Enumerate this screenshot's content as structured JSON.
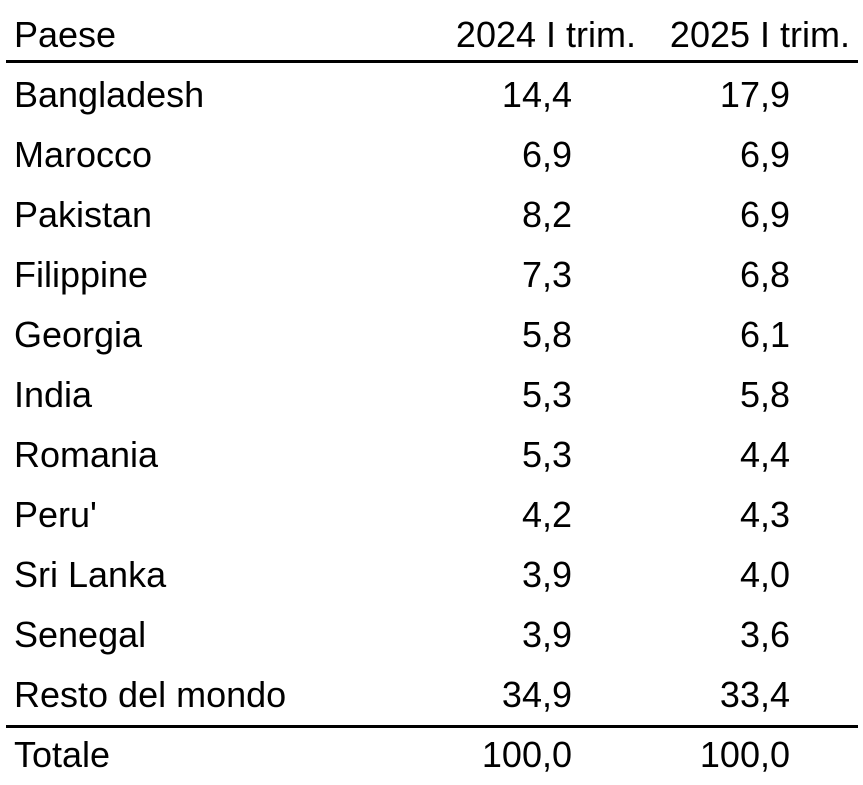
{
  "chart_data": {
    "type": "table",
    "columns": [
      "Paese",
      "2024 I trim.",
      "2025 I trim."
    ],
    "rows": [
      {
        "country": "Bangladesh",
        "v2024": "14,4",
        "v2025": "17,9"
      },
      {
        "country": "Marocco",
        "v2024": "6,9",
        "v2025": "6,9"
      },
      {
        "country": "Pakistan",
        "v2024": "8,2",
        "v2025": "6,9"
      },
      {
        "country": "Filippine",
        "v2024": "7,3",
        "v2025": "6,8"
      },
      {
        "country": "Georgia",
        "v2024": "5,8",
        "v2025": "6,1"
      },
      {
        "country": "India",
        "v2024": "5,3",
        "v2025": "5,8"
      },
      {
        "country": "Romania",
        "v2024": "5,3",
        "v2025": "4,4"
      },
      {
        "country": "Peru'",
        "v2024": "4,2",
        "v2025": "4,3"
      },
      {
        "country": "Sri Lanka",
        "v2024": "3,9",
        "v2025": "4,0"
      },
      {
        "country": "Senegal",
        "v2024": "3,9",
        "v2025": "3,6"
      },
      {
        "country": "Resto del mondo",
        "v2024": "34,9",
        "v2025": "33,4"
      }
    ],
    "total": {
      "country": "Totale",
      "v2024": "100,0",
      "v2025": "100,0"
    }
  }
}
